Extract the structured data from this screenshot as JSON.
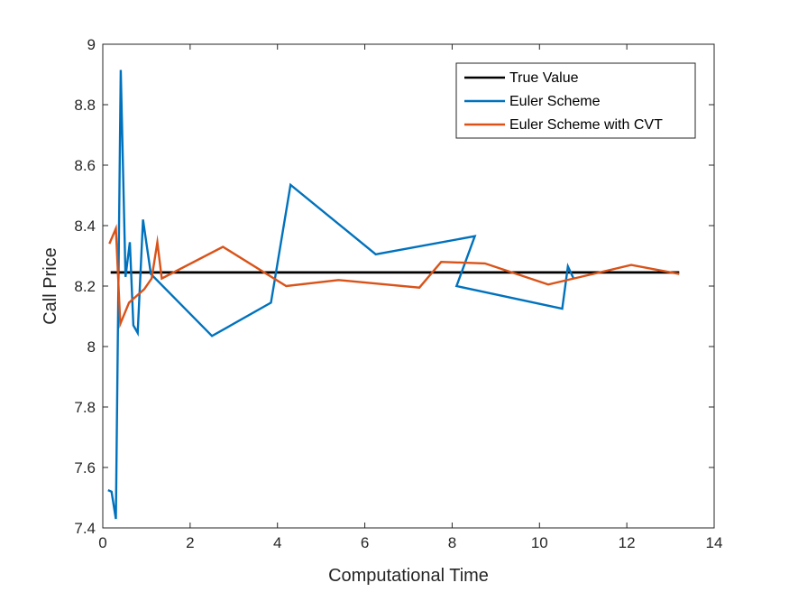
{
  "chart_data": {
    "type": "line",
    "title": "",
    "xlabel": "Computational Time",
    "ylabel": "Call Price",
    "xlim": [
      0,
      14
    ],
    "ylim": [
      7.4,
      9
    ],
    "xticks": [
      0,
      2,
      4,
      6,
      8,
      10,
      12,
      14
    ],
    "yticks": [
      7.4,
      7.6,
      7.8,
      8,
      8.2,
      8.4,
      8.6,
      8.8,
      9
    ],
    "xtick_labels": [
      "0",
      "2",
      "4",
      "6",
      "8",
      "10",
      "12",
      "14"
    ],
    "ytick_labels": [
      "7.4",
      "7.6",
      "7.8",
      "8",
      "8.2",
      "8.4",
      "8.6",
      "8.8",
      "9"
    ],
    "grid": false,
    "legend_position": "top-right",
    "series": [
      {
        "name": "True Value",
        "color": "#000000",
        "x": [
          0.18,
          13.2
        ],
        "y": [
          8.245,
          8.245
        ]
      },
      {
        "name": "Euler Scheme",
        "color": "#0072BD",
        "x": [
          0.12,
          0.2,
          0.3,
          0.41,
          0.52,
          0.62,
          0.7,
          0.8,
          0.92,
          1.1,
          2.5,
          3.85,
          4.3,
          6.25,
          8.52,
          8.1,
          10.52,
          10.65,
          10.78
        ],
        "y": [
          7.525,
          7.52,
          7.43,
          8.915,
          8.23,
          8.345,
          8.07,
          8.045,
          8.42,
          8.24,
          8.035,
          8.145,
          8.535,
          8.305,
          8.365,
          8.2,
          8.125,
          8.265,
          8.225
        ]
      },
      {
        "name": "Euler Scheme with CVT",
        "color": "#D95319",
        "x": [
          0.15,
          0.3,
          0.4,
          0.6,
          0.95,
          1.12,
          1.25,
          1.35,
          2.75,
          4.2,
          5.4,
          7.25,
          7.75,
          8.75,
          10.2,
          12.1,
          13.2
        ],
        "y": [
          8.34,
          8.39,
          8.075,
          8.145,
          8.19,
          8.225,
          8.345,
          8.225,
          8.33,
          8.2,
          8.22,
          8.195,
          8.28,
          8.275,
          8.205,
          8.27,
          8.24
        ]
      }
    ]
  }
}
